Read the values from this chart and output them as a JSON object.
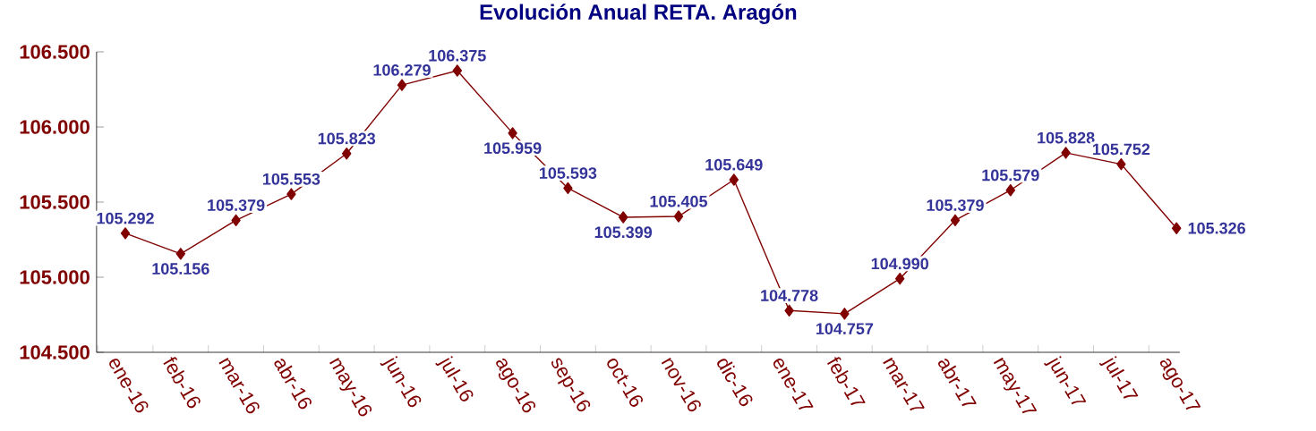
{
  "chart_data": {
    "type": "line",
    "title": "Evolución  Anual RETA. Aragón",
    "categories": [
      "ene-16",
      "feb-16",
      "mar-16",
      "abr-16",
      "may-16",
      "jun-16",
      "jul-16",
      "ago-16",
      "sep-16",
      "oct-16",
      "nov-16",
      "dic-16",
      "ene-17",
      "feb-17",
      "mar-17",
      "abr-17",
      "may-17",
      "jun-17",
      "jul-17",
      "ago-17"
    ],
    "values": [
      105292,
      105156,
      105379,
      105553,
      105823,
      106279,
      106375,
      105959,
      105593,
      105399,
      105405,
      105649,
      104778,
      104757,
      104990,
      105379,
      105579,
      105828,
      105752,
      105326
    ],
    "value_labels": [
      "105.292",
      "105.156",
      "105.379",
      "105.553",
      "105.823",
      "106.279",
      "106.375",
      "105.959",
      "105.593",
      "105.399",
      "105.405",
      "105.649",
      "104.778",
      "104.757",
      "104.990",
      "105.379",
      "105.579",
      "105.828",
      "105.752",
      "105.326"
    ],
    "color": "#800000",
    "marker": "diamond",
    "line_style": "solid",
    "grid": false,
    "legend": false,
    "ylim": [
      104500,
      106500
    ],
    "yticks": [
      {
        "value": 104500,
        "label": "104.500"
      },
      {
        "value": 105000,
        "label": "105.000"
      },
      {
        "value": 105500,
        "label": "105.500"
      },
      {
        "value": 106000,
        "label": "106.000"
      },
      {
        "value": 106500,
        "label": "106.500"
      }
    ]
  }
}
